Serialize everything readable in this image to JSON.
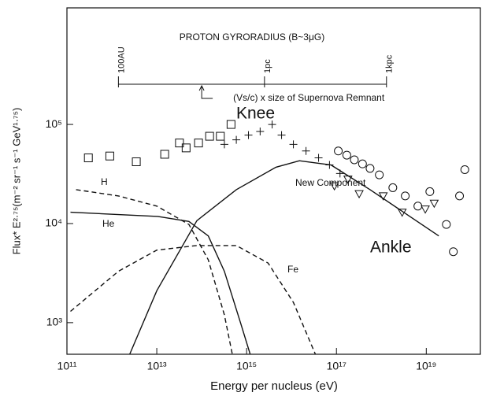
{
  "chart_data": {
    "type": "scatter",
    "xlabel": "Energy per nucleus (eV)",
    "ylabel": "Flux* E²·⁷⁵(m⁻² sr⁻¹ s⁻¹ GeV¹·⁷⁵)",
    "xscale": "log",
    "yscale": "log",
    "xlim": [
      100000000000.0,
      1.6e+20
    ],
    "ylim": [
      480,
      1500000
    ],
    "xticks": [
      {
        "value": 100000000000.0,
        "label": "10¹¹"
      },
      {
        "value": 10000000000000.0,
        "label": "10¹³"
      },
      {
        "value": 1000000000000000.0,
        "label": "10¹⁵"
      },
      {
        "value": 1e+17,
        "label": "10¹⁷"
      },
      {
        "value": 1e+19,
        "label": "10¹⁹"
      }
    ],
    "yticks": [
      {
        "value": 1000,
        "label": "10³"
      },
      {
        "value": 10000,
        "label": "10⁴"
      },
      {
        "value": 100000,
        "label": "10⁵"
      }
    ],
    "color": "#111111",
    "markers": [
      {
        "marker": "square",
        "x": [
          300000000000.0,
          900000000000.0,
          3500000000000.0,
          15000000000000.0,
          32000000000000.0,
          45000000000000.0,
          85000000000000.0,
          150000000000000.0,
          260000000000000.0,
          450000000000000.0
        ],
        "values": [
          46000,
          48000,
          42000,
          50000,
          65000,
          58000,
          65000,
          76000,
          76000,
          100000
        ]
      },
      {
        "marker": "cross",
        "x": [
          320000000000000.0,
          590000000000000.0,
          1100000000000000.0,
          2000000000000000.0,
          3700000000000000.0,
          6000000000000000.0,
          1.1e+16,
          2.1e+16,
          4e+16,
          7e+16,
          1.2e+17
        ],
        "values": [
          63000,
          70000,
          78000,
          85000,
          100000,
          78000,
          63000,
          54000,
          46000,
          39000,
          32000
        ]
      },
      {
        "marker": "circle",
        "x": [
          1.1e+17,
          1.7e+17,
          2.5e+17,
          3.8e+17,
          5.6e+17,
          9e+17,
          1.8e+18,
          3.4e+18,
          6.5e+18,
          1.2e+19,
          2.8e+19,
          4e+19,
          5.5e+19,
          7.2e+19
        ],
        "values": [
          54000,
          49000,
          44000,
          40000,
          36000,
          31000,
          23000,
          19000,
          15000,
          21000,
          9800,
          5200,
          19000,
          35000
        ]
      },
      {
        "marker": "triangle",
        "x": [
          9e+16,
          1.8e+17,
          3.2e+17,
          1.1e+18,
          2.9e+18,
          9.5e+18,
          1.5e+19
        ],
        "values": [
          24000,
          28000,
          20000,
          19000,
          13000,
          14000,
          16000
        ]
      }
    ],
    "curves": [
      {
        "name": "H",
        "dash": true,
        "x": [
          160000000000.0,
          1400000000000.0,
          10000000000000.0,
          52000000000000.0,
          140000000000000.0,
          320000000000000.0,
          480000000000000.0
        ],
        "values": [
          22000,
          19000,
          15000,
          9800,
          4300,
          1200,
          480
        ]
      },
      {
        "name": "He",
        "dash": false,
        "x": [
          120000000000.0,
          10500000000000.0,
          52000000000000.0,
          140000000000000.0,
          320000000000000.0,
          730000000000000.0,
          1200000000000000.0
        ],
        "values": [
          13000,
          11800,
          10500,
          7500,
          3300,
          1000,
          480
        ]
      },
      {
        "name": "Fe",
        "dash": true,
        "x": [
          120000000000.0,
          1400000000000.0,
          10000000000000.0,
          78000000000000.0,
          590000000000000.0,
          3000000000000000.0,
          1.1e+16,
          3.4e+16
        ],
        "values": [
          1300,
          3300,
          5400,
          6000,
          6000,
          4000,
          1600,
          480
        ]
      },
      {
        "name": "New Component",
        "dash": false,
        "x": [
          2500000000000.0,
          10000000000000.0,
          78000000000000.0,
          590000000000000.0,
          4500000000000000.0,
          1.5e+16,
          7.6e+16,
          5.6e+17,
          4.3e+18,
          1.9e+19
        ],
        "values": [
          480,
          2100,
          10700,
          22000,
          37000,
          43000,
          39000,
          22000,
          11800,
          7500
        ]
      }
    ],
    "gyroradius_axis": {
      "title": "PROTON GYRORADIUS (B~3μG)",
      "ticks": [
        {
          "value": 1400000000000.0,
          "label": "100AU"
        },
        {
          "value": 2500000000000000.0,
          "label": "1pc"
        },
        {
          "value": 1.3e+18,
          "label": "1kpc"
        }
      ]
    },
    "annotations": [
      {
        "text": "(Vs/c) x size of Supernova Remnant",
        "x": 100000000000000.0
      },
      {
        "text": "Knee",
        "color": "#e8141c"
      },
      {
        "text": "Ankle",
        "color": "#e8141c"
      }
    ]
  }
}
